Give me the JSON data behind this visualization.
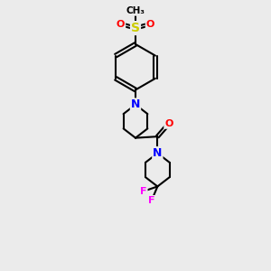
{
  "bg_color": "#ebebeb",
  "bond_color": "#000000",
  "N_color": "#0000ff",
  "O_color": "#ff0000",
  "S_color": "#cccc00",
  "F_color": "#ff00ff",
  "line_width": 1.5,
  "font_size": 8,
  "figsize": [
    3.0,
    3.0
  ],
  "dpi": 100,
  "xlim": [
    0,
    10
  ],
  "ylim": [
    0,
    10
  ]
}
